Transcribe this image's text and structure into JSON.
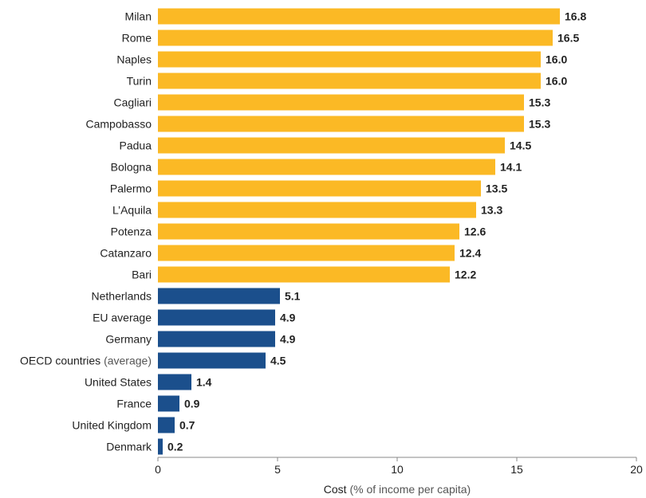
{
  "chart_data": {
    "type": "bar",
    "orientation": "horizontal",
    "categories": [
      "Milan",
      "Rome",
      "Naples",
      "Turin",
      "Cagliari",
      "Campobasso",
      "Padua",
      "Bologna",
      "Palermo",
      "L’Aquila",
      "Potenza",
      "Catanzaro",
      "Bari",
      "Netherlands",
      "EU average",
      "Germany",
      "OECD countries (average)",
      "United States",
      "France",
      "United Kingdom",
      "Denmark"
    ],
    "values": [
      16.8,
      16.5,
      16.0,
      16.0,
      15.3,
      15.3,
      14.5,
      14.1,
      13.5,
      13.3,
      12.6,
      12.4,
      12.2,
      5.1,
      4.9,
      4.9,
      4.5,
      1.4,
      0.9,
      0.7,
      0.2
    ],
    "value_labels": [
      "16.8",
      "16.5",
      "16.0",
      "16.0",
      "15.3",
      "15.3",
      "14.5",
      "14.1",
      "13.5",
      "13.3",
      "12.6",
      "12.4",
      "12.2",
      "5.1",
      "4.9",
      "4.9",
      "4.5",
      "1.4",
      "0.9",
      "0.7",
      "0.2"
    ],
    "groups": [
      "italy",
      "italy",
      "italy",
      "italy",
      "italy",
      "italy",
      "italy",
      "italy",
      "italy",
      "italy",
      "italy",
      "italy",
      "italy",
      "intl",
      "intl",
      "intl",
      "intl",
      "intl",
      "intl",
      "intl",
      "intl"
    ],
    "colors": {
      "italy": "#FBB925",
      "intl": "#1B4F8C"
    },
    "xlabel": "Cost (% of income per capita)",
    "xlim": [
      0,
      20
    ],
    "xticks": [
      0,
      5,
      10,
      15,
      20
    ],
    "grid": false,
    "legend": false
  }
}
